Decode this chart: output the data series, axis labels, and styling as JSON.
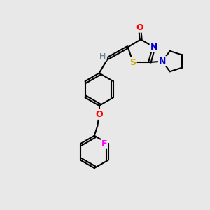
{
  "bg_color": "#e8e8e8",
  "bond_color": "#000000",
  "bond_width": 1.5,
  "atom_colors": {
    "O": "#ff0000",
    "N": "#0000cd",
    "S": "#ccaa00",
    "F": "#ff00ff",
    "H": "#708090",
    "C": "#000000"
  },
  "font_size": 9,
  "fig_size": [
    3.0,
    3.0
  ],
  "dpi": 100,
  "xlim": [
    0,
    10
  ],
  "ylim": [
    0,
    10
  ]
}
